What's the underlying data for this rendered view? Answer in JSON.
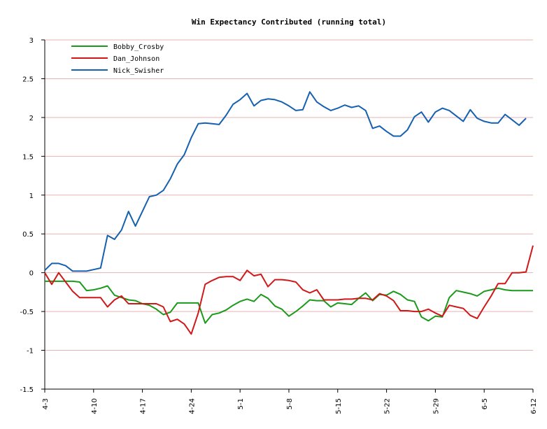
{
  "chart_data": {
    "type": "line",
    "title": "Win Expectancy Contributed (running total)",
    "xlabel": "",
    "ylabel": "",
    "ylim": [
      -1.5,
      3
    ],
    "yticks": [
      "3",
      "2.5",
      "2",
      "1.5",
      "1",
      "0.5",
      "0",
      "-0.5",
      "-1",
      "-1.5"
    ],
    "xticks": [
      "4-3",
      "4-10",
      "4-17",
      "4-24",
      "5-1",
      "5-8",
      "5-15",
      "5-22",
      "5-29",
      "6-5",
      "6-12"
    ],
    "x_range_days": [
      0,
      70
    ],
    "grid": "horizontal",
    "legend_position": "top-left",
    "colors": {
      "gridline": "#e8b3b3",
      "axis": "#000000"
    },
    "series": [
      {
        "name": "Bobby_Crosby",
        "color": "#1a9a1a",
        "points": [
          [
            0,
            -0.11
          ],
          [
            1,
            -0.11
          ],
          [
            2,
            -0.11
          ],
          [
            3,
            -0.11
          ],
          [
            4,
            -0.11
          ],
          [
            5,
            -0.12
          ],
          [
            6,
            -0.23
          ],
          [
            7,
            -0.22
          ],
          [
            8,
            -0.2
          ],
          [
            9,
            -0.17
          ],
          [
            10,
            -0.29
          ],
          [
            11,
            -0.32
          ],
          [
            12,
            -0.35
          ],
          [
            13,
            -0.36
          ],
          [
            14,
            -0.4
          ],
          [
            15,
            -0.42
          ],
          [
            16,
            -0.47
          ],
          [
            17,
            -0.54
          ],
          [
            18,
            -0.51
          ],
          [
            19,
            -0.39
          ],
          [
            20,
            -0.39
          ],
          [
            21,
            -0.39
          ],
          [
            22,
            -0.39
          ],
          [
            23,
            -0.65
          ],
          [
            24,
            -0.54
          ],
          [
            25,
            -0.52
          ],
          [
            26,
            -0.48
          ],
          [
            27,
            -0.42
          ],
          [
            28,
            -0.37
          ],
          [
            29,
            -0.34
          ],
          [
            30,
            -0.37
          ],
          [
            31,
            -0.28
          ],
          [
            32,
            -0.33
          ],
          [
            33,
            -0.43
          ],
          [
            34,
            -0.47
          ],
          [
            35,
            -0.56
          ],
          [
            36,
            -0.5
          ],
          [
            37,
            -0.43
          ],
          [
            38,
            -0.35
          ],
          [
            39,
            -0.36
          ],
          [
            40,
            -0.36
          ],
          [
            41,
            -0.44
          ],
          [
            42,
            -0.39
          ],
          [
            43,
            -0.4
          ],
          [
            44,
            -0.41
          ],
          [
            45,
            -0.33
          ],
          [
            46,
            -0.26
          ],
          [
            47,
            -0.36
          ],
          [
            48,
            -0.28
          ],
          [
            49,
            -0.29
          ],
          [
            50,
            -0.24
          ],
          [
            51,
            -0.28
          ],
          [
            52,
            -0.35
          ],
          [
            53,
            -0.37
          ],
          [
            54,
            -0.57
          ],
          [
            55,
            -0.62
          ],
          [
            56,
            -0.56
          ],
          [
            57,
            -0.57
          ],
          [
            58,
            -0.32
          ],
          [
            59,
            -0.23
          ],
          [
            60,
            -0.25
          ],
          [
            61,
            -0.27
          ],
          [
            62,
            -0.3
          ],
          [
            63,
            -0.24
          ],
          [
            64,
            -0.22
          ],
          [
            65,
            -0.2
          ],
          [
            66,
            -0.22
          ],
          [
            67,
            -0.23
          ],
          [
            68,
            -0.23
          ],
          [
            69,
            -0.23
          ],
          [
            70,
            -0.23
          ]
        ]
      },
      {
        "name": "Dan_Johnson",
        "color": "#d01818",
        "points": [
          [
            0,
            0.0
          ],
          [
            1,
            -0.15
          ],
          [
            2,
            0.0
          ],
          [
            3,
            -0.12
          ],
          [
            4,
            -0.24
          ],
          [
            5,
            -0.32
          ],
          [
            6,
            -0.32
          ],
          [
            7,
            -0.32
          ],
          [
            8,
            -0.32
          ],
          [
            9,
            -0.44
          ],
          [
            10,
            -0.35
          ],
          [
            11,
            -0.3
          ],
          [
            12,
            -0.4
          ],
          [
            13,
            -0.4
          ],
          [
            14,
            -0.4
          ],
          [
            15,
            -0.4
          ],
          [
            16,
            -0.4
          ],
          [
            17,
            -0.44
          ],
          [
            18,
            -0.63
          ],
          [
            19,
            -0.6
          ],
          [
            20,
            -0.66
          ],
          [
            21,
            -0.79
          ],
          [
            22,
            -0.52
          ],
          [
            23,
            -0.15
          ],
          [
            24,
            -0.1
          ],
          [
            25,
            -0.06
          ],
          [
            26,
            -0.05
          ],
          [
            27,
            -0.05
          ],
          [
            28,
            -0.1
          ],
          [
            29,
            0.03
          ],
          [
            30,
            -0.04
          ],
          [
            31,
            -0.02
          ],
          [
            32,
            -0.18
          ],
          [
            33,
            -0.09
          ],
          [
            34,
            -0.09
          ],
          [
            35,
            -0.1
          ],
          [
            36,
            -0.12
          ],
          [
            37,
            -0.22
          ],
          [
            38,
            -0.26
          ],
          [
            39,
            -0.22
          ],
          [
            40,
            -0.35
          ],
          [
            41,
            -0.35
          ],
          [
            42,
            -0.35
          ],
          [
            43,
            -0.34
          ],
          [
            44,
            -0.34
          ],
          [
            45,
            -0.33
          ],
          [
            46,
            -0.33
          ],
          [
            47,
            -0.35
          ],
          [
            48,
            -0.27
          ],
          [
            49,
            -0.3
          ],
          [
            50,
            -0.36
          ],
          [
            51,
            -0.49
          ],
          [
            52,
            -0.49
          ],
          [
            53,
            -0.5
          ],
          [
            54,
            -0.5
          ],
          [
            55,
            -0.47
          ],
          [
            56,
            -0.52
          ],
          [
            57,
            -0.56
          ],
          [
            58,
            -0.42
          ],
          [
            59,
            -0.44
          ],
          [
            60,
            -0.46
          ],
          [
            61,
            -0.55
          ],
          [
            62,
            -0.59
          ],
          [
            63,
            -0.44
          ],
          [
            64,
            -0.3
          ],
          [
            65,
            -0.14
          ],
          [
            66,
            -0.14
          ],
          [
            67,
            0.0
          ],
          [
            68,
            0.0
          ],
          [
            69,
            0.01
          ],
          [
            70,
            0.35
          ]
        ]
      },
      {
        "name": "Nick_Swisher",
        "color": "#1560b0",
        "points": [
          [
            0,
            0.03
          ],
          [
            1,
            0.12
          ],
          [
            2,
            0.12
          ],
          [
            3,
            0.09
          ],
          [
            4,
            0.02
          ],
          [
            5,
            0.02
          ],
          [
            6,
            0.02
          ],
          [
            7,
            0.04
          ],
          [
            8,
            0.06
          ],
          [
            9,
            0.48
          ],
          [
            10,
            0.43
          ],
          [
            11,
            0.55
          ],
          [
            12,
            0.79
          ],
          [
            13,
            0.6
          ],
          [
            14,
            0.79
          ],
          [
            15,
            0.98
          ],
          [
            16,
            1.0
          ],
          [
            17,
            1.06
          ],
          [
            18,
            1.21
          ],
          [
            19,
            1.4
          ],
          [
            20,
            1.52
          ],
          [
            21,
            1.74
          ],
          [
            22,
            1.92
          ],
          [
            23,
            1.93
          ],
          [
            24,
            1.92
          ],
          [
            25,
            1.91
          ],
          [
            26,
            2.03
          ],
          [
            27,
            2.17
          ],
          [
            28,
            2.23
          ],
          [
            29,
            2.31
          ],
          [
            30,
            2.15
          ],
          [
            31,
            2.22
          ],
          [
            32,
            2.24
          ],
          [
            33,
            2.23
          ],
          [
            34,
            2.2
          ],
          [
            35,
            2.15
          ],
          [
            36,
            2.09
          ],
          [
            37,
            2.1
          ],
          [
            38,
            2.33
          ],
          [
            39,
            2.2
          ],
          [
            40,
            2.14
          ],
          [
            41,
            2.09
          ],
          [
            42,
            2.12
          ],
          [
            43,
            2.16
          ],
          [
            44,
            2.13
          ],
          [
            45,
            2.15
          ],
          [
            46,
            2.09
          ],
          [
            47,
            1.86
          ],
          [
            48,
            1.89
          ],
          [
            49,
            1.82
          ],
          [
            50,
            1.76
          ],
          [
            51,
            1.76
          ],
          [
            52,
            1.84
          ],
          [
            53,
            2.01
          ],
          [
            54,
            2.07
          ],
          [
            55,
            1.94
          ],
          [
            56,
            2.07
          ],
          [
            57,
            2.12
          ],
          [
            58,
            2.09
          ],
          [
            59,
            2.02
          ],
          [
            60,
            1.95
          ],
          [
            61,
            2.1
          ],
          [
            62,
            1.99
          ],
          [
            63,
            1.95
          ],
          [
            64,
            1.93
          ],
          [
            65,
            1.93
          ],
          [
            66,
            2.04
          ],
          [
            67,
            1.97
          ],
          [
            68,
            1.9
          ],
          [
            69,
            1.99
          ]
        ]
      }
    ]
  }
}
